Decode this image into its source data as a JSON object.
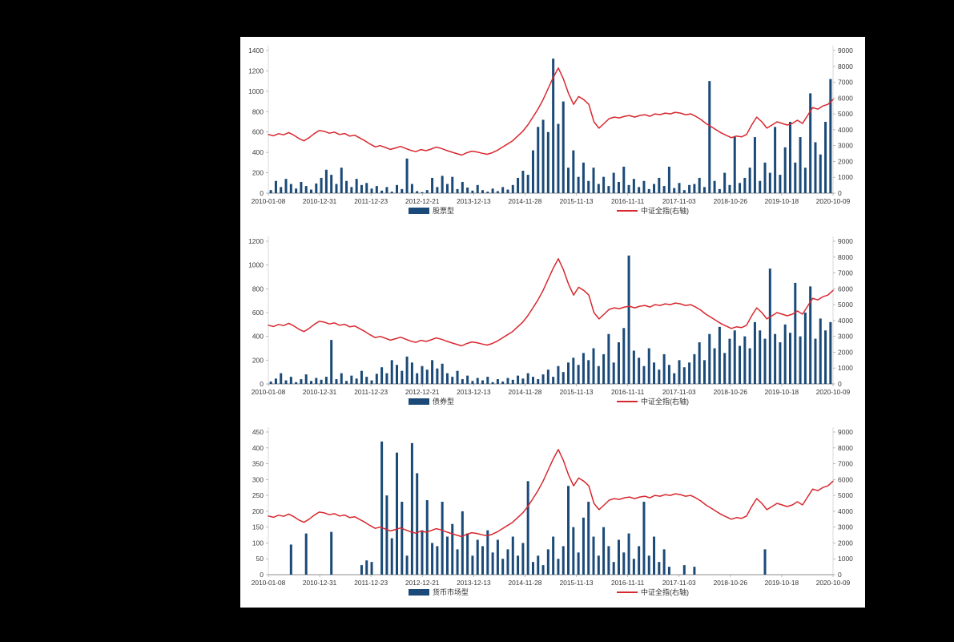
{
  "page": {
    "background": "#000000",
    "panel_background": "#ffffff"
  },
  "chart_data": {
    "type": "bar",
    "layout": "three stacked bar+line combo charts, shared x axis labels, line on right axis, legend below each chart, no gridlines, no titles",
    "shared": {
      "x_tick_labels": [
        "2010-01-08",
        "2010-12-31",
        "2011-12-23",
        "2012-12-21",
        "2013-12-13",
        "2014-11-28",
        "2015-11-13",
        "2016-11-11",
        "2017-11-03",
        "2018-10-26",
        "2019-10-18",
        "2020-10-09"
      ],
      "right_axis": {
        "min": 0,
        "max": 9000,
        "step": 1000,
        "tick_labels": [
          "0",
          "1000",
          "2000",
          "3000",
          "4000",
          "5000",
          "6000",
          "7000",
          "8000",
          "9000"
        ]
      },
      "line_series": {
        "name": "中证全指(右轴)",
        "color": "#D7282F",
        "axis": "right",
        "values": [
          3700,
          3620,
          3750,
          3680,
          3820,
          3660,
          3450,
          3300,
          3500,
          3750,
          3950,
          3900,
          3780,
          3850,
          3700,
          3760,
          3600,
          3650,
          3480,
          3300,
          3100,
          2920,
          3000,
          2880,
          2760,
          2850,
          2950,
          2820,
          2700,
          2620,
          2750,
          2680,
          2780,
          2900,
          2820,
          2700,
          2600,
          2500,
          2400,
          2550,
          2650,
          2600,
          2520,
          2450,
          2550,
          2700,
          2900,
          3100,
          3300,
          3600,
          3900,
          4300,
          4800,
          5300,
          5900,
          6600,
          7300,
          7900,
          7200,
          6300,
          5600,
          6100,
          5900,
          5600,
          4500,
          4100,
          4400,
          4700,
          4800,
          4750,
          4850,
          4900,
          4800,
          4900,
          4950,
          4850,
          5000,
          4950,
          5050,
          5000,
          5100,
          5050,
          4950,
          5000,
          4850,
          4650,
          4400,
          4200,
          4000,
          3800,
          3650,
          3500,
          3600,
          3550,
          3700,
          4300,
          4800,
          4500,
          4100,
          4300,
          4500,
          4400,
          4300,
          4400,
          4600,
          4400,
          4900,
          5400,
          5300,
          5500,
          5600,
          5900
        ]
      },
      "bar_color": "#1B4A78"
    },
    "charts": [
      {
        "bar_series": {
          "name": "股票型",
          "color": "#1B4A78",
          "values": [
            30,
            120,
            60,
            140,
            90,
            45,
            110,
            70,
            35,
            95,
            150,
            230,
            180,
            90,
            250,
            120,
            60,
            140,
            80,
            100,
            45,
            70,
            25,
            60,
            15,
            80,
            40,
            340,
            90,
            20,
            10,
            30,
            150,
            60,
            170,
            90,
            160,
            40,
            110,
            55,
            25,
            80,
            30,
            15,
            45,
            20,
            60,
            35,
            80,
            150,
            220,
            180,
            420,
            650,
            720,
            600,
            1320,
            680,
            900,
            250,
            420,
            160,
            300,
            120,
            250,
            90,
            160,
            70,
            200,
            110,
            260,
            80,
            140,
            60,
            120,
            40,
            90,
            150,
            70,
            260,
            50,
            100,
            30,
            80,
            90,
            150,
            60,
            1100,
            120,
            40,
            200,
            80,
            560,
            100,
            150,
            250,
            550,
            120,
            300,
            200,
            650,
            180,
            450,
            700,
            300,
            550,
            250,
            980,
            500,
            380,
            700,
            1120
          ]
        },
        "left_axis": {
          "min": 0,
          "max": 1400,
          "step": 200,
          "tick_labels": [
            "0",
            "200",
            "400",
            "600",
            "800",
            "1000",
            "1200",
            "1400"
          ]
        }
      },
      {
        "bar_series": {
          "name": "债券型",
          "color": "#1B4A78",
          "values": [
            20,
            45,
            90,
            30,
            60,
            15,
            40,
            80,
            25,
            50,
            35,
            60,
            370,
            40,
            90,
            25,
            70,
            45,
            110,
            60,
            30,
            85,
            140,
            90,
            200,
            160,
            110,
            230,
            180,
            90,
            150,
            120,
            200,
            130,
            170,
            90,
            60,
            110,
            40,
            70,
            25,
            50,
            30,
            60,
            15,
            40,
            20,
            50,
            35,
            70,
            45,
            90,
            60,
            40,
            80,
            120,
            60,
            150,
            100,
            180,
            220,
            160,
            260,
            200,
            300,
            150,
            250,
            420,
            180,
            350,
            470,
            1080,
            280,
            220,
            150,
            300,
            180,
            120,
            250,
            160,
            90,
            200,
            140,
            180,
            250,
            350,
            200,
            420,
            300,
            480,
            260,
            380,
            450,
            320,
            400,
            300,
            520,
            450,
            380,
            970,
            420,
            350,
            500,
            430,
            850,
            400,
            600,
            820,
            380,
            550,
            450,
            520
          ]
        },
        "left_axis": {
          "min": 0,
          "max": 1200,
          "step": 200,
          "tick_labels": [
            "0",
            "200",
            "400",
            "600",
            "800",
            "1000",
            "1200"
          ]
        }
      },
      {
        "bar_series": {
          "name": "货币市场型",
          "color": "#1B4A78",
          "values": [
            0,
            0,
            0,
            0,
            95,
            0,
            0,
            130,
            0,
            0,
            0,
            0,
            135,
            0,
            0,
            0,
            0,
            0,
            30,
            45,
            40,
            0,
            420,
            250,
            115,
            385,
            230,
            60,
            415,
            320,
            140,
            235,
            100,
            90,
            230,
            120,
            160,
            80,
            200,
            130,
            60,
            110,
            90,
            140,
            70,
            110,
            50,
            80,
            120,
            60,
            100,
            295,
            40,
            60,
            30,
            80,
            120,
            50,
            90,
            280,
            150,
            70,
            180,
            230,
            120,
            60,
            150,
            90,
            40,
            110,
            70,
            130,
            50,
            90,
            230,
            60,
            120,
            40,
            80,
            25,
            0,
            0,
            30,
            0,
            25,
            0,
            0,
            0,
            0,
            0,
            0,
            0,
            0,
            0,
            0,
            0,
            0,
            0,
            80,
            0,
            0,
            0,
            0,
            0,
            0,
            0,
            0,
            0,
            0,
            0,
            0,
            0
          ]
        },
        "left_axis": {
          "min": 0,
          "max": 450,
          "step": 50,
          "tick_labels": [
            "0",
            "50",
            "100",
            "150",
            "200",
            "250",
            "300",
            "350",
            "400",
            "450"
          ]
        }
      }
    ]
  }
}
